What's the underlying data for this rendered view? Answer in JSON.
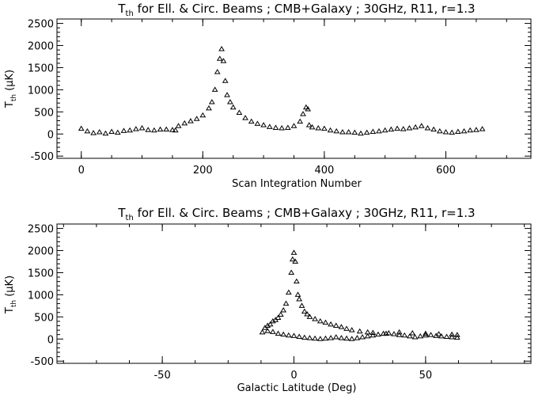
{
  "figure": {
    "background": "#ffffff",
    "ink": "#000000",
    "marker": "triangle"
  },
  "chart_data": [
    {
      "type": "scatter",
      "title_main": "T",
      "title_sub": "th",
      "title_rest": " for Ell. & Circ. Beams ; CMB+Galaxy ; 30GHz, R11, r=1.3",
      "xlabel": "Scan Integration Number",
      "ylabel_main": "T",
      "ylabel_sub": "th",
      "ylabel_rest": " (μK)",
      "xlim": [
        -40,
        740
      ],
      "ylim": [
        -550,
        2600
      ],
      "xticks": [
        0,
        200,
        400,
        600
      ],
      "xticklabels": [
        "0",
        "200",
        "400",
        "600"
      ],
      "yticks": [
        -500,
        0,
        500,
        1000,
        1500,
        2000,
        2500
      ],
      "yticklabels": [
        "-500",
        "0",
        "500",
        "1000",
        "1500",
        "2000",
        "2500"
      ],
      "series": [
        {
          "points": [
            [
              0,
              120
            ],
            [
              10,
              60
            ],
            [
              20,
              20
            ],
            [
              30,
              40
            ],
            [
              40,
              10
            ],
            [
              50,
              50
            ],
            [
              60,
              30
            ],
            [
              70,
              70
            ],
            [
              80,
              80
            ],
            [
              90,
              110
            ],
            [
              100,
              130
            ],
            [
              110,
              90
            ],
            [
              120,
              80
            ],
            [
              130,
              100
            ],
            [
              140,
              100
            ],
            [
              150,
              90
            ],
            [
              155,
              80
            ],
            [
              160,
              180
            ],
            [
              170,
              240
            ],
            [
              180,
              290
            ],
            [
              190,
              340
            ],
            [
              200,
              420
            ],
            [
              210,
              580
            ],
            [
              215,
              720
            ],
            [
              220,
              1000
            ],
            [
              224,
              1400
            ],
            [
              228,
              1700
            ],
            [
              231,
              1920
            ],
            [
              234,
              1650
            ],
            [
              237,
              1200
            ],
            [
              240,
              880
            ],
            [
              245,
              720
            ],
            [
              250,
              600
            ],
            [
              260,
              480
            ],
            [
              270,
              360
            ],
            [
              280,
              280
            ],
            [
              290,
              230
            ],
            [
              300,
              200
            ],
            [
              310,
              160
            ],
            [
              320,
              140
            ],
            [
              330,
              130
            ],
            [
              340,
              140
            ],
            [
              350,
              180
            ],
            [
              360,
              280
            ],
            [
              365,
              450
            ],
            [
              370,
              600
            ],
            [
              373,
              560
            ],
            [
              375,
              200
            ],
            [
              380,
              150
            ],
            [
              390,
              130
            ],
            [
              400,
              120
            ],
            [
              410,
              80
            ],
            [
              420,
              60
            ],
            [
              430,
              40
            ],
            [
              440,
              40
            ],
            [
              450,
              30
            ],
            [
              460,
              10
            ],
            [
              470,
              30
            ],
            [
              480,
              50
            ],
            [
              490,
              60
            ],
            [
              500,
              80
            ],
            [
              510,
              100
            ],
            [
              520,
              120
            ],
            [
              530,
              110
            ],
            [
              540,
              130
            ],
            [
              550,
              150
            ],
            [
              560,
              180
            ],
            [
              570,
              130
            ],
            [
              580,
              100
            ],
            [
              590,
              60
            ],
            [
              600,
              40
            ],
            [
              610,
              30
            ],
            [
              620,
              50
            ],
            [
              630,
              60
            ],
            [
              640,
              80
            ],
            [
              650,
              90
            ],
            [
              660,
              110
            ]
          ]
        }
      ]
    },
    {
      "type": "scatter",
      "title_main": "T",
      "title_sub": "th",
      "title_rest": " for Ell. & Circ. Beams ; CMB+Galaxy ; 30GHz, R11, r=1.3",
      "xlabel": "Galactic Latitude (Deg)",
      "ylabel_main": "T",
      "ylabel_sub": "th",
      "ylabel_rest": " (μK)",
      "xlim": [
        -90,
        90
      ],
      "ylim": [
        -550,
        2600
      ],
      "xticks": [
        -50,
        0,
        50
      ],
      "xticklabels": [
        "-50",
        "0",
        "50"
      ],
      "yticks": [
        -500,
        0,
        500,
        1000,
        1500,
        2000,
        2500
      ],
      "yticklabels": [
        "-500",
        "0",
        "500",
        "1000",
        "1500",
        "2000",
        "2500"
      ],
      "series": [
        {
          "points": [
            [
              -12,
              150
            ],
            [
              -11,
              250
            ],
            [
              -10,
              300
            ],
            [
              -9,
              330
            ],
            [
              -8,
              400
            ],
            [
              -7,
              430
            ],
            [
              -6,
              480
            ],
            [
              -5,
              550
            ],
            [
              -4,
              650
            ],
            [
              -3,
              800
            ],
            [
              -2,
              1050
            ],
            [
              -1,
              1500
            ],
            [
              -0.5,
              1800
            ],
            [
              0,
              1950
            ],
            [
              0.5,
              1750
            ],
            [
              1,
              1300
            ],
            [
              1.5,
              1000
            ],
            [
              2,
              900
            ],
            [
              3,
              750
            ],
            [
              4,
              620
            ],
            [
              5,
              560
            ],
            [
              6,
              500
            ],
            [
              8,
              450
            ],
            [
              10,
              400
            ],
            [
              12,
              370
            ],
            [
              14,
              330
            ],
            [
              16,
              300
            ],
            [
              18,
              270
            ],
            [
              20,
              230
            ],
            [
              22,
              200
            ],
            [
              25,
              170
            ],
            [
              28,
              150
            ],
            [
              30,
              140
            ],
            [
              35,
              120
            ],
            [
              40,
              150
            ],
            [
              45,
              130
            ],
            [
              50,
              120
            ],
            [
              55,
              110
            ],
            [
              60,
              100
            ],
            [
              62,
              90
            ]
          ]
        },
        {
          "points": [
            [
              -10,
              180
            ],
            [
              -8,
              160
            ],
            [
              -6,
              120
            ],
            [
              -4,
              100
            ],
            [
              -2,
              80
            ],
            [
              0,
              70
            ],
            [
              2,
              50
            ],
            [
              4,
              30
            ],
            [
              6,
              20
            ],
            [
              8,
              10
            ],
            [
              10,
              0
            ],
            [
              12,
              10
            ],
            [
              14,
              20
            ],
            [
              16,
              40
            ],
            [
              18,
              20
            ],
            [
              20,
              10
            ],
            [
              22,
              0
            ],
            [
              24,
              20
            ],
            [
              26,
              40
            ],
            [
              28,
              60
            ],
            [
              30,
              80
            ],
            [
              32,
              100
            ],
            [
              34,
              120
            ],
            [
              36,
              130
            ],
            [
              38,
              110
            ],
            [
              40,
              90
            ],
            [
              42,
              80
            ],
            [
              44,
              60
            ],
            [
              46,
              40
            ],
            [
              48,
              60
            ],
            [
              50,
              80
            ],
            [
              52,
              90
            ],
            [
              54,
              70
            ],
            [
              56,
              60
            ],
            [
              58,
              50
            ],
            [
              60,
              40
            ],
            [
              62,
              30
            ]
          ]
        }
      ]
    }
  ]
}
